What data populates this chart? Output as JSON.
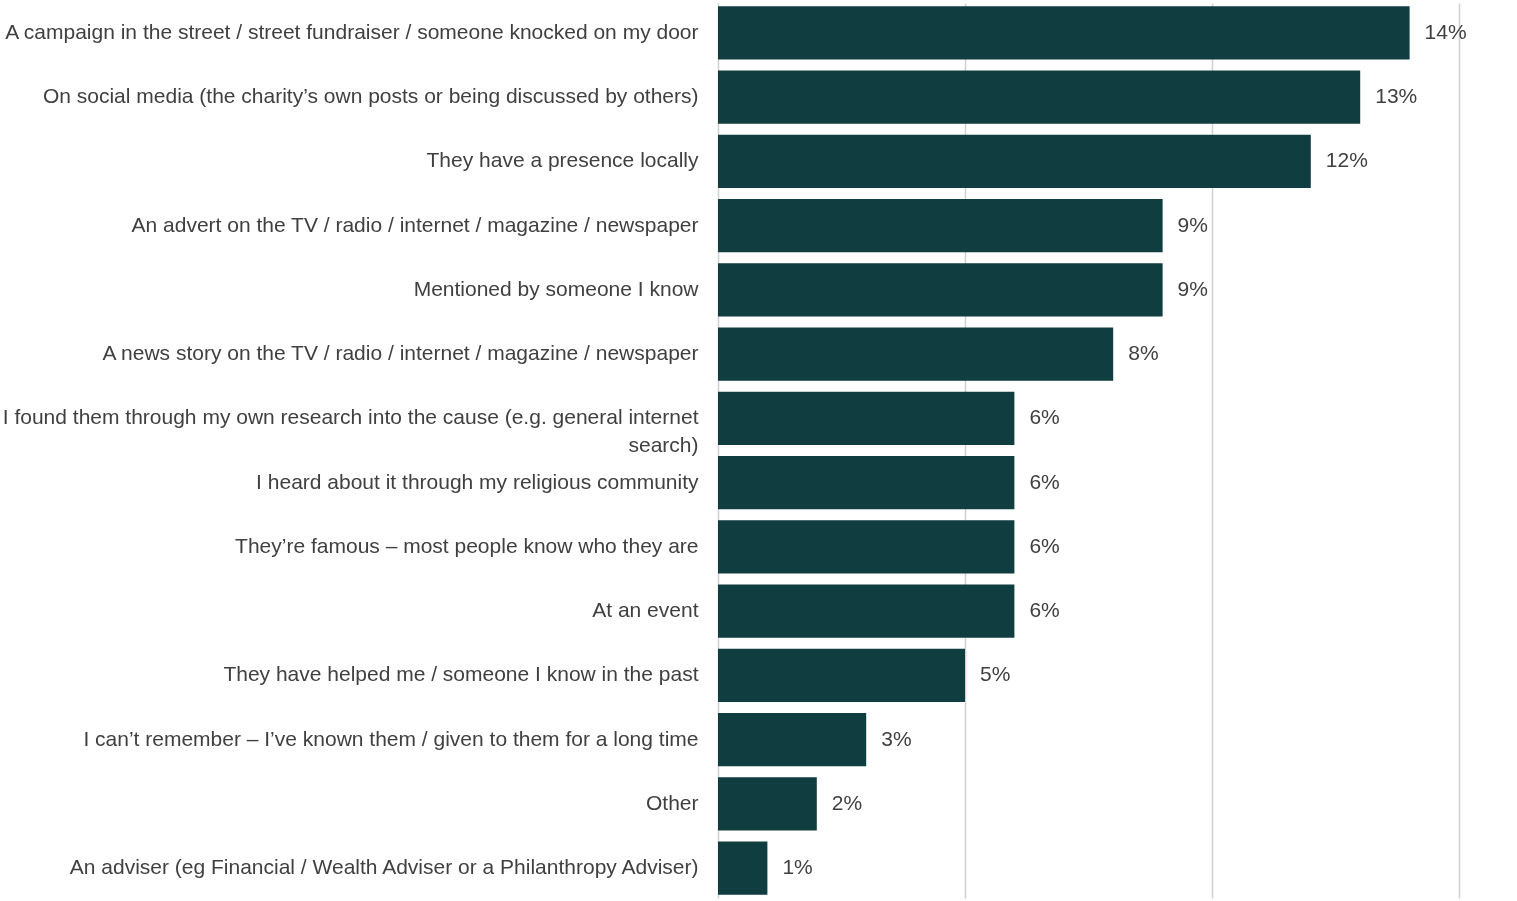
{
  "chart_data": {
    "type": "bar",
    "orientation": "horizontal",
    "categories": [
      "A campaign in the street / street fundraiser / someone knocked on my door",
      "On social media (the charity’s own posts or being discussed by others)",
      "They have a presence locally",
      "An advert on the TV / radio / internet / magazine / newspaper",
      "Mentioned by someone I know",
      "A news story on the TV / radio / internet / magazine / newspaper",
      "I found them through my own research into the cause (e.g. general internet search)",
      "I heard about it through my religious community",
      "They’re famous – most people know who they are",
      "At an event",
      "They have helped me / someone I know in the past",
      "I can’t remember – I’ve known them / given to them for a long time",
      "Other",
      "An adviser (eg Financial / Wealth Adviser or a Philanthropy Adviser)"
    ],
    "values": [
      14,
      13,
      12,
      9,
      9,
      8,
      6,
      6,
      6,
      6,
      5,
      3,
      2,
      1
    ],
    "value_labels": [
      "14%",
      "13%",
      "12%",
      "9%",
      "9%",
      "8%",
      "6%",
      "6%",
      "6%",
      "6%",
      "5%",
      "3%",
      "2%",
      "1%"
    ],
    "color": "#103d40",
    "xlim": [
      0,
      15
    ],
    "xticks": [
      {
        "value": 0,
        "label": null
      },
      {
        "value": 5,
        "label": null
      },
      {
        "value": 10,
        "label": null
      },
      {
        "value": 15,
        "label": null
      }
    ],
    "grid": "x",
    "tick_labels": "y"
  }
}
